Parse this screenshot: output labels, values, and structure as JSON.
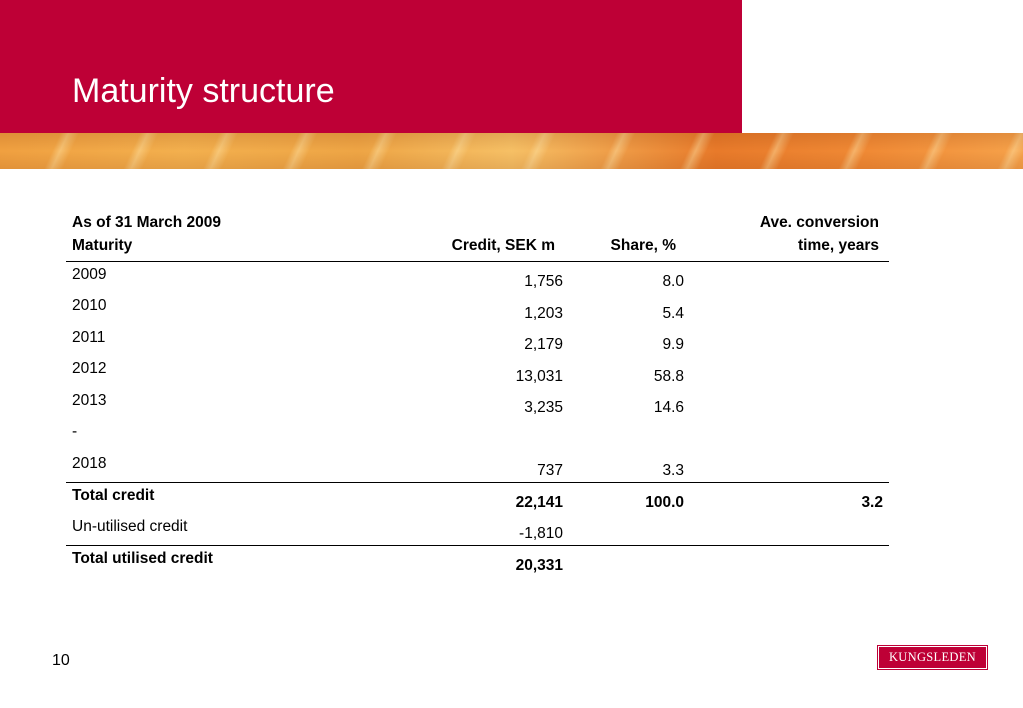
{
  "header": {
    "title": "Maturity structure",
    "accent_color": "#be0036"
  },
  "table": {
    "header": {
      "label_line1": "As of  31 March 2009",
      "label_line2": "Maturity",
      "credit": "Credit, SEK m",
      "share": "Share, %",
      "conversion_line1": "Ave. conversion",
      "conversion_line2": "time, years"
    },
    "rows": [
      {
        "label": "2009",
        "credit": "1,756",
        "share": "8.0",
        "conversion": ""
      },
      {
        "label": "2010",
        "credit": "1,203",
        "share": "5.4",
        "conversion": ""
      },
      {
        "label": "2011",
        "credit": "2,179",
        "share": "9.9",
        "conversion": ""
      },
      {
        "label": "2012",
        "credit": "13,031",
        "share": "58.8",
        "conversion": ""
      },
      {
        "label": "2013",
        "credit": "3,235",
        "share": "14.6",
        "conversion": ""
      },
      {
        "label": "-",
        "credit": "",
        "share": "",
        "conversion": ""
      },
      {
        "label": "2018",
        "credit": "737",
        "share": "3.3",
        "conversion": ""
      }
    ],
    "total_credit": {
      "label": "Total credit",
      "credit": "22,141",
      "share": "100.0",
      "conversion": "3.2"
    },
    "unutilised": {
      "label": "Un-utilised credit",
      "credit": "-1,810"
    },
    "total_utilised": {
      "label": "Total utilised credit",
      "credit": "20,331"
    }
  },
  "footer": {
    "page_number": "10",
    "logo_text": "KUNGSLEDEN"
  }
}
